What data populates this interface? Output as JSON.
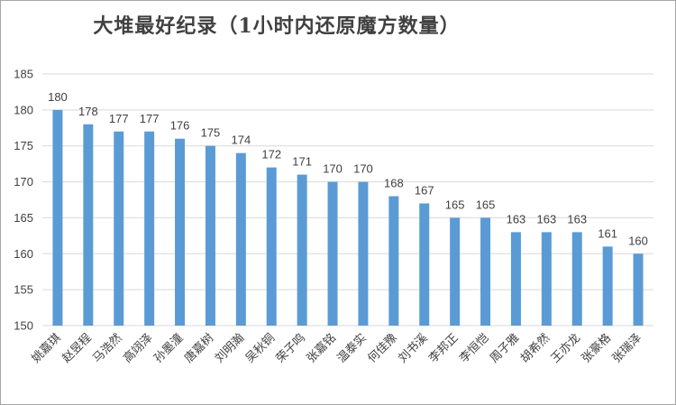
{
  "chart_data": {
    "type": "bar",
    "title": "大堆最好纪录（1小时内还原魔方数量）",
    "categories": [
      "姚嘉琪",
      "赵昱程",
      "马浩然",
      "高翊泽",
      "孙墨潼",
      "唐嘉树",
      "刘明瀚",
      "吴秋铜",
      "荣子鸣",
      "张嘉铭",
      "温泰实",
      "何佳豫",
      "刘书溪",
      "李邦正",
      "李恒恺",
      "周子雅",
      "胡希然",
      "王亦龙",
      "张豪格",
      "张瑞泽"
    ],
    "values": [
      180,
      178,
      177,
      177,
      176,
      175,
      174,
      172,
      171,
      170,
      170,
      168,
      167,
      165,
      165,
      163,
      163,
      163,
      161,
      160
    ],
    "ylim": [
      150,
      185
    ],
    "yticks": [
      150,
      155,
      160,
      165,
      170,
      175,
      180,
      185
    ],
    "bar_color": "#5b9bd5",
    "grid": true,
    "xlabel": "",
    "ylabel": ""
  }
}
